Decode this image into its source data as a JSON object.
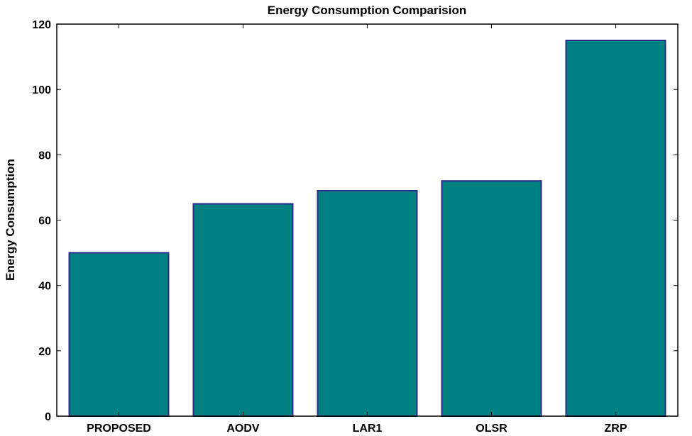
{
  "chart_data": {
    "type": "bar",
    "title": "Energy Consumption Comparision",
    "xlabel": "",
    "ylabel": "Energy Consumption",
    "categories": [
      "PROPOSED",
      "AODV",
      "LAR1",
      "OLSR",
      "ZRP"
    ],
    "values": [
      50,
      65,
      69,
      72,
      115
    ],
    "ylim": [
      0,
      120
    ],
    "yticks": [
      "0",
      "20",
      "40",
      "60",
      "80",
      "100",
      "120"
    ],
    "grid": false,
    "legend": "none",
    "colors": {
      "bar_fill": "#008080",
      "bar_edge": "#2c2c8c",
      "axes": "#000000"
    }
  }
}
